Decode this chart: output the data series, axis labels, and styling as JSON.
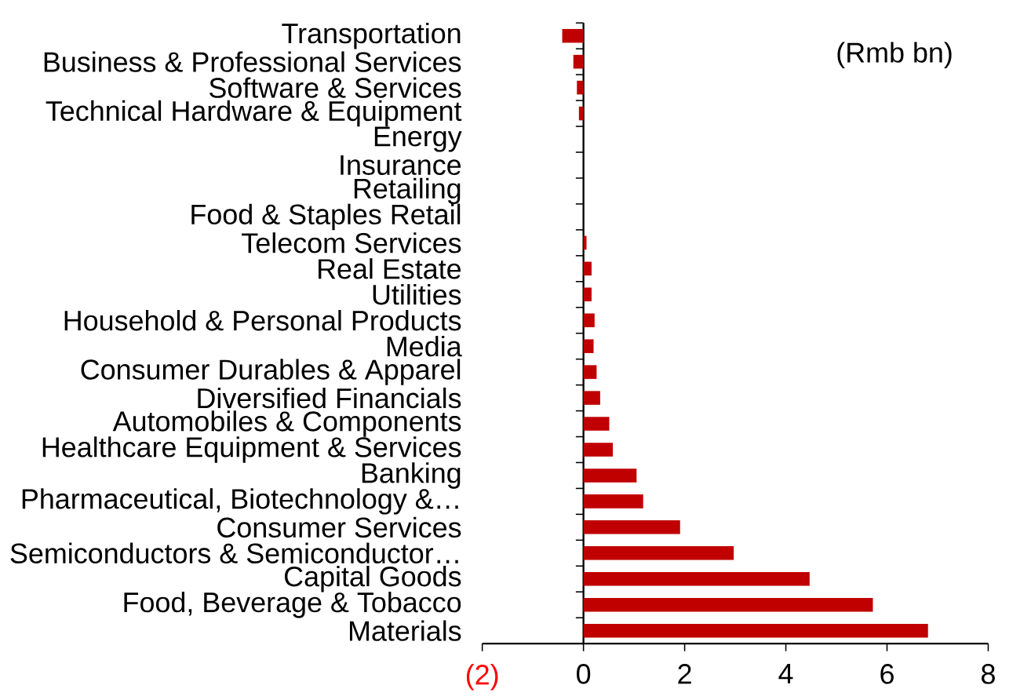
{
  "chart_data": {
    "type": "bar",
    "orientation": "horizontal",
    "categories": [
      "Transportation",
      "Business & Professional Services",
      "Software & Services",
      "Technical Hardware & Equipment",
      "Energy",
      "Insurance",
      "Retailing",
      "Food & Staples Retail",
      "Telecom Services",
      "Real Estate",
      "Utilities",
      "Household & Personal Products",
      "Media",
      "Consumer Durables & Apparel",
      "Diversified Financials",
      "Automobiles & Components",
      "Healthcare Equipment & Services",
      "Banking",
      "Pharmaceutical, Biotechnology &…",
      "Consumer Services",
      "Semiconductors & Semiconductor…",
      "Capital Goods",
      "Food, Beverage & Tobacco",
      "Materials"
    ],
    "values": [
      -0.42,
      -0.2,
      -0.13,
      -0.09,
      0,
      0,
      0,
      0,
      0.06,
      0.16,
      0.16,
      0.22,
      0.2,
      0.26,
      0.33,
      0.51,
      0.58,
      1.05,
      1.18,
      1.91,
      2.97,
      4.47,
      5.72,
      6.81
    ],
    "color": "#c00000",
    "xlim": [
      -2,
      8
    ],
    "xticks": [
      {
        "value": -2,
        "label": "(2)"
      },
      0,
      2,
      4,
      6,
      8
    ],
    "annotations": [
      "(Rmb bn)"
    ]
  }
}
